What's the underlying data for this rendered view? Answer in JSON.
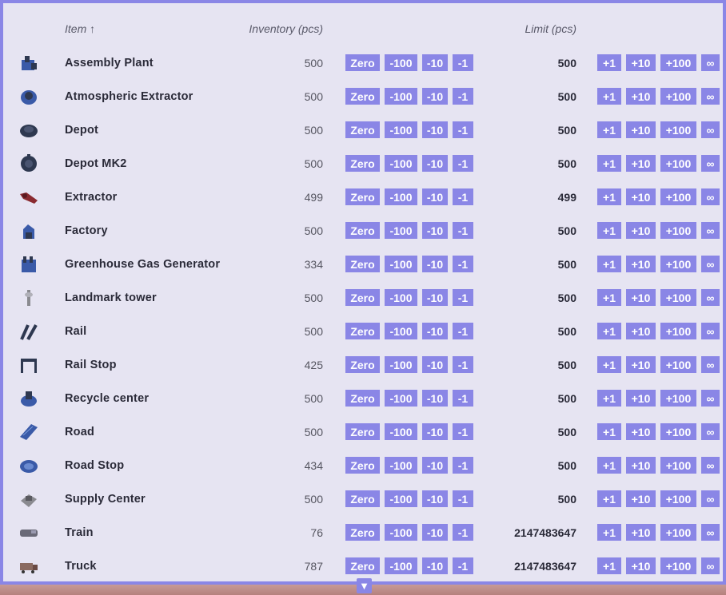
{
  "header": {
    "item_label": "Item ↑",
    "inventory_label": "Inventory (pcs)",
    "limit_label": "Limit (pcs)"
  },
  "buttons": {
    "zero": "Zero",
    "minus100": "-100",
    "minus10": "-10",
    "minus1": "-1",
    "plus1": "+1",
    "plus10": "+10",
    "plus100": "+100",
    "infinite": "∞"
  },
  "colors": {
    "accent": "#8a86e6",
    "panel_bg": "#e6e4f2",
    "icon_dark": "#2e3850",
    "icon_blue": "#3a5aa8",
    "icon_red": "#8a2a30",
    "icon_grey": "#8a8a90"
  },
  "items": [
    {
      "name": "Assembly Plant",
      "inventory": "500",
      "limit": "500",
      "icon": "assembly-plant-icon"
    },
    {
      "name": "Atmospheric Extractor",
      "inventory": "500",
      "limit": "500",
      "icon": "atmospheric-extractor-icon"
    },
    {
      "name": "Depot",
      "inventory": "500",
      "limit": "500",
      "icon": "depot-icon"
    },
    {
      "name": "Depot MK2",
      "inventory": "500",
      "limit": "500",
      "icon": "depot-mk2-icon"
    },
    {
      "name": "Extractor",
      "inventory": "499",
      "limit": "499",
      "icon": "extractor-icon"
    },
    {
      "name": "Factory",
      "inventory": "500",
      "limit": "500",
      "icon": "factory-icon"
    },
    {
      "name": "Greenhouse Gas Generator",
      "inventory": "334",
      "limit": "500",
      "icon": "greenhouse-gas-generator-icon"
    },
    {
      "name": "Landmark tower",
      "inventory": "500",
      "limit": "500",
      "icon": "landmark-tower-icon"
    },
    {
      "name": "Rail",
      "inventory": "500",
      "limit": "500",
      "icon": "rail-icon"
    },
    {
      "name": "Rail Stop",
      "inventory": "425",
      "limit": "500",
      "icon": "rail-stop-icon"
    },
    {
      "name": "Recycle center",
      "inventory": "500",
      "limit": "500",
      "icon": "recycle-center-icon"
    },
    {
      "name": "Road",
      "inventory": "500",
      "limit": "500",
      "icon": "road-icon"
    },
    {
      "name": "Road Stop",
      "inventory": "434",
      "limit": "500",
      "icon": "road-stop-icon"
    },
    {
      "name": "Supply Center",
      "inventory": "500",
      "limit": "500",
      "icon": "supply-center-icon"
    },
    {
      "name": "Train",
      "inventory": "76",
      "limit": "2147483647",
      "icon": "train-icon"
    },
    {
      "name": "Truck",
      "inventory": "787",
      "limit": "2147483647",
      "icon": "truck-icon"
    }
  ],
  "scroll_arrow": "▼"
}
